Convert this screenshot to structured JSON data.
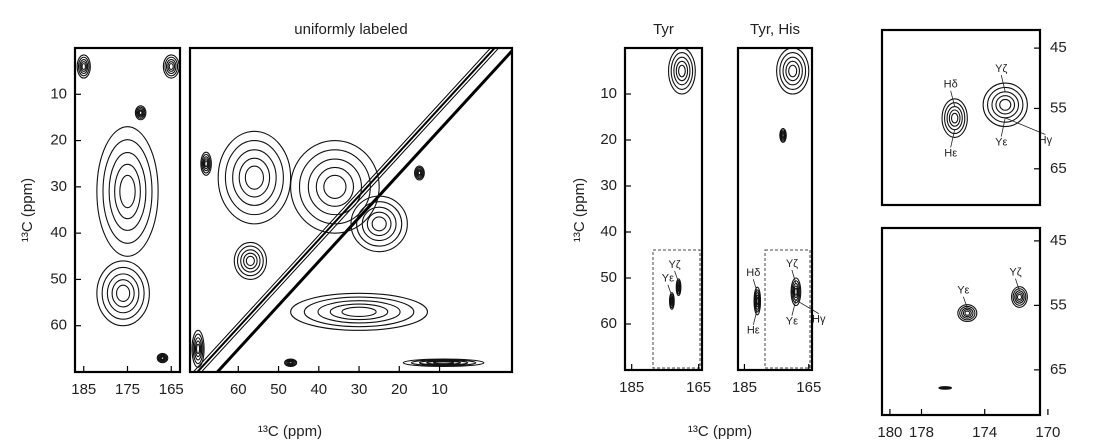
{
  "chart_data": [
    {
      "type": "contour",
      "ylabel": "¹³C (ppm)",
      "xlim": [
        187,
        163
      ],
      "ylim": [
        0,
        70
      ],
      "xticks": [
        185,
        175,
        165
      ],
      "yticks": [
        10,
        20,
        30,
        40,
        50,
        60
      ],
      "peaks": [
        {
          "x": 175,
          "y": 31,
          "dx": 7,
          "dy": 14
        },
        {
          "x": 176,
          "y": 53,
          "dx": 6,
          "dy": 7
        },
        {
          "x": 172,
          "y": 14,
          "dx": 1.2,
          "dy": 1.5
        },
        {
          "x": 167,
          "y": 67,
          "dx": 1.2,
          "dy": 1
        },
        {
          "x": 185,
          "y": 4,
          "dx": 1.5,
          "dy": 2.5
        },
        {
          "x": 165,
          "y": 4,
          "dx": 1.8,
          "dy": 2.5
        }
      ]
    },
    {
      "type": "contour",
      "title": "uniformly labeled",
      "xlabel": "¹³C (ppm)",
      "xlim": [
        72,
        -8
      ],
      "ylim": [
        0,
        70
      ],
      "xticks": [
        60,
        50,
        40,
        30,
        20,
        10
      ],
      "diagonal": true,
      "peaks": [
        {
          "x": 56,
          "y": 28,
          "dx": 9,
          "dy": 10
        },
        {
          "x": 57,
          "y": 46,
          "dx": 4,
          "dy": 4
        },
        {
          "x": 36,
          "y": 30,
          "dx": 11,
          "dy": 10
        },
        {
          "x": 25,
          "y": 38,
          "dx": 7,
          "dy": 6
        },
        {
          "x": 30,
          "y": 57,
          "dx": 17,
          "dy": 4
        },
        {
          "x": 9,
          "y": 68,
          "dx": 10,
          "dy": 0.8
        },
        {
          "x": 68,
          "y": 25,
          "dx": 1.3,
          "dy": 2.5
        },
        {
          "x": 70,
          "y": 65,
          "dx": 1.5,
          "dy": 4
        },
        {
          "x": 47,
          "y": 68,
          "dx": 1.5,
          "dy": 0.8
        },
        {
          "x": 15,
          "y": 27,
          "dx": 1.2,
          "dy": 1.5
        }
      ]
    },
    {
      "type": "contour",
      "title": "Tyr",
      "ylabel": "¹³C (ppm)",
      "xlabel": "¹³C (ppm)",
      "xlim": [
        187,
        164
      ],
      "ylim": [
        0,
        70
      ],
      "xticks": [
        185,
        165
      ],
      "yticks": [
        10,
        20,
        30,
        40,
        50,
        60
      ],
      "peaks": [
        {
          "x": 170,
          "y": 5,
          "dx": 4,
          "dy": 5
        },
        {
          "x": 171,
          "y": 52,
          "dx": 0.7,
          "dy": 1.8,
          "labels": [
            "Yζ"
          ]
        },
        {
          "x": 173,
          "y": 55,
          "dx": 0.7,
          "dy": 1.8,
          "labels": [
            "Yε"
          ]
        }
      ]
    },
    {
      "type": "contour",
      "title": "Tyr, His",
      "xlim": [
        187,
        164
      ],
      "ylim": [
        0,
        70
      ],
      "xticks": [
        185,
        165
      ],
      "peaks": [
        {
          "x": 170,
          "y": 5,
          "dx": 5,
          "dy": 5
        },
        {
          "x": 173,
          "y": 19,
          "dx": 1,
          "dy": 1.5
        },
        {
          "x": 181,
          "y": 55,
          "dx": 1,
          "dy": 3,
          "labels": [
            "Hδ",
            "Hε"
          ]
        },
        {
          "x": 169,
          "y": 53,
          "dx": 1.5,
          "dy": 3,
          "labels": [
            "Yζ",
            "Yε",
            "Hγ"
          ]
        }
      ]
    },
    {
      "type": "contour",
      "xlim": [
        180.5,
        170.5
      ],
      "ylim": [
        42,
        71
      ],
      "yticks": [
        45,
        55,
        65
      ],
      "peaks": [
        {
          "x": 175.9,
          "y": 56.6,
          "dx": 0.8,
          "dy": 3.2,
          "labels": [
            "Hδ",
            "Hε"
          ]
        },
        {
          "x": 172.7,
          "y": 54.4,
          "dx": 1.4,
          "dy": 3.6,
          "labels": [
            "Yζ",
            "Yε",
            "Hγ"
          ]
        }
      ]
    },
    {
      "type": "contour",
      "xlim": [
        180.5,
        170.5
      ],
      "ylim": [
        43,
        72
      ],
      "xticks": [
        180,
        178,
        174,
        170
      ],
      "yticks": [
        45,
        55,
        65
      ],
      "peaks": [
        {
          "x": 175.1,
          "y": 56.2,
          "dx": 0.6,
          "dy": 1.3,
          "labels": [
            "Yε"
          ]
        },
        {
          "x": 171.8,
          "y": 53.7,
          "dx": 0.5,
          "dy": 1.6,
          "labels": [
            "Yζ"
          ]
        },
        {
          "x": 176.5,
          "y": 67.8,
          "dx": 0.4,
          "dy": 0.2
        }
      ]
    }
  ]
}
